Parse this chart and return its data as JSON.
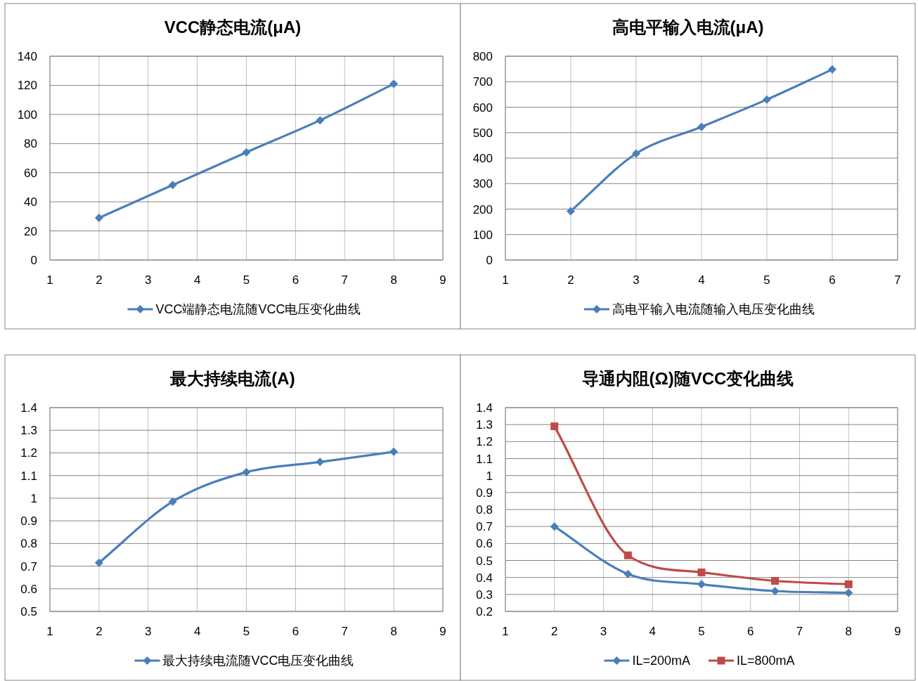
{
  "chart_data": [
    {
      "type": "line",
      "title": "VCC静态电流(μA)",
      "x": [
        2,
        3.5,
        5,
        6.5,
        8
      ],
      "xlim": [
        1,
        9
      ],
      "xticks": [
        1,
        2,
        3,
        4,
        5,
        6,
        7,
        8,
        9
      ],
      "ylim": [
        0,
        140
      ],
      "yticks": [
        0,
        20,
        40,
        60,
        80,
        100,
        120,
        140
      ],
      "grid": true,
      "legend": "bottom",
      "marker": "diamond",
      "line_style": "solid",
      "series": [
        {
          "name": "VCC端静态电流随VCC电压变化曲线",
          "color": "#4a7ebb",
          "values": [
            29,
            51.5,
            74,
            96,
            121
          ]
        }
      ]
    },
    {
      "type": "line",
      "title": "高电平输入电流(μA)",
      "x": [
        2,
        3,
        4,
        5,
        6
      ],
      "xlim": [
        1,
        7
      ],
      "xticks": [
        1,
        2,
        3,
        4,
        5,
        6,
        7
      ],
      "ylim": [
        0,
        800
      ],
      "yticks": [
        0,
        100,
        200,
        300,
        400,
        500,
        600,
        700,
        800
      ],
      "grid": true,
      "legend": "bottom",
      "marker": "diamond",
      "line_style": "solid",
      "series": [
        {
          "name": "高电平输入电流随输入电压变化曲线",
          "color": "#4a7ebb",
          "values": [
            192,
            418,
            523,
            630,
            748
          ]
        }
      ]
    },
    {
      "type": "line",
      "title": "最大持续电流(A)",
      "x": [
        2,
        3.5,
        5,
        6.5,
        8
      ],
      "xlim": [
        1,
        9
      ],
      "xticks": [
        1,
        2,
        3,
        4,
        5,
        6,
        7,
        8,
        9
      ],
      "ylim": [
        0.5,
        1.4
      ],
      "yticks": [
        0.5,
        0.6,
        0.7,
        0.8,
        0.9,
        1,
        1.1,
        1.2,
        1.3,
        1.4
      ],
      "grid": true,
      "legend": "bottom",
      "marker": "diamond",
      "line_style": "solid",
      "series": [
        {
          "name": "最大持续电流随VCC电压变化曲线",
          "color": "#4a7ebb",
          "values": [
            0.715,
            0.985,
            1.115,
            1.16,
            1.205
          ]
        }
      ]
    },
    {
      "type": "line",
      "title": "导通内阻(Ω)随VCC变化曲线",
      "x": [
        2,
        3.5,
        5,
        6.5,
        8
      ],
      "xlim": [
        1,
        9
      ],
      "xticks": [
        1,
        2,
        3,
        4,
        5,
        6,
        7,
        8,
        9
      ],
      "ylim": [
        0.2,
        1.4
      ],
      "yticks": [
        0.2,
        0.3,
        0.4,
        0.5,
        0.6,
        0.7,
        0.8,
        0.9,
        1,
        1.1,
        1.2,
        1.3,
        1.4
      ],
      "grid": true,
      "legend": "bottom",
      "line_style": "solid",
      "series": [
        {
          "name": "IL=200mA",
          "color": "#4a7ebb",
          "marker": "diamond",
          "values": [
            0.7,
            0.42,
            0.36,
            0.32,
            0.31
          ]
        },
        {
          "name": "IL=800mA",
          "color": "#be4b48",
          "marker": "square",
          "values": [
            1.29,
            0.53,
            0.43,
            0.38,
            0.36
          ]
        }
      ]
    }
  ]
}
